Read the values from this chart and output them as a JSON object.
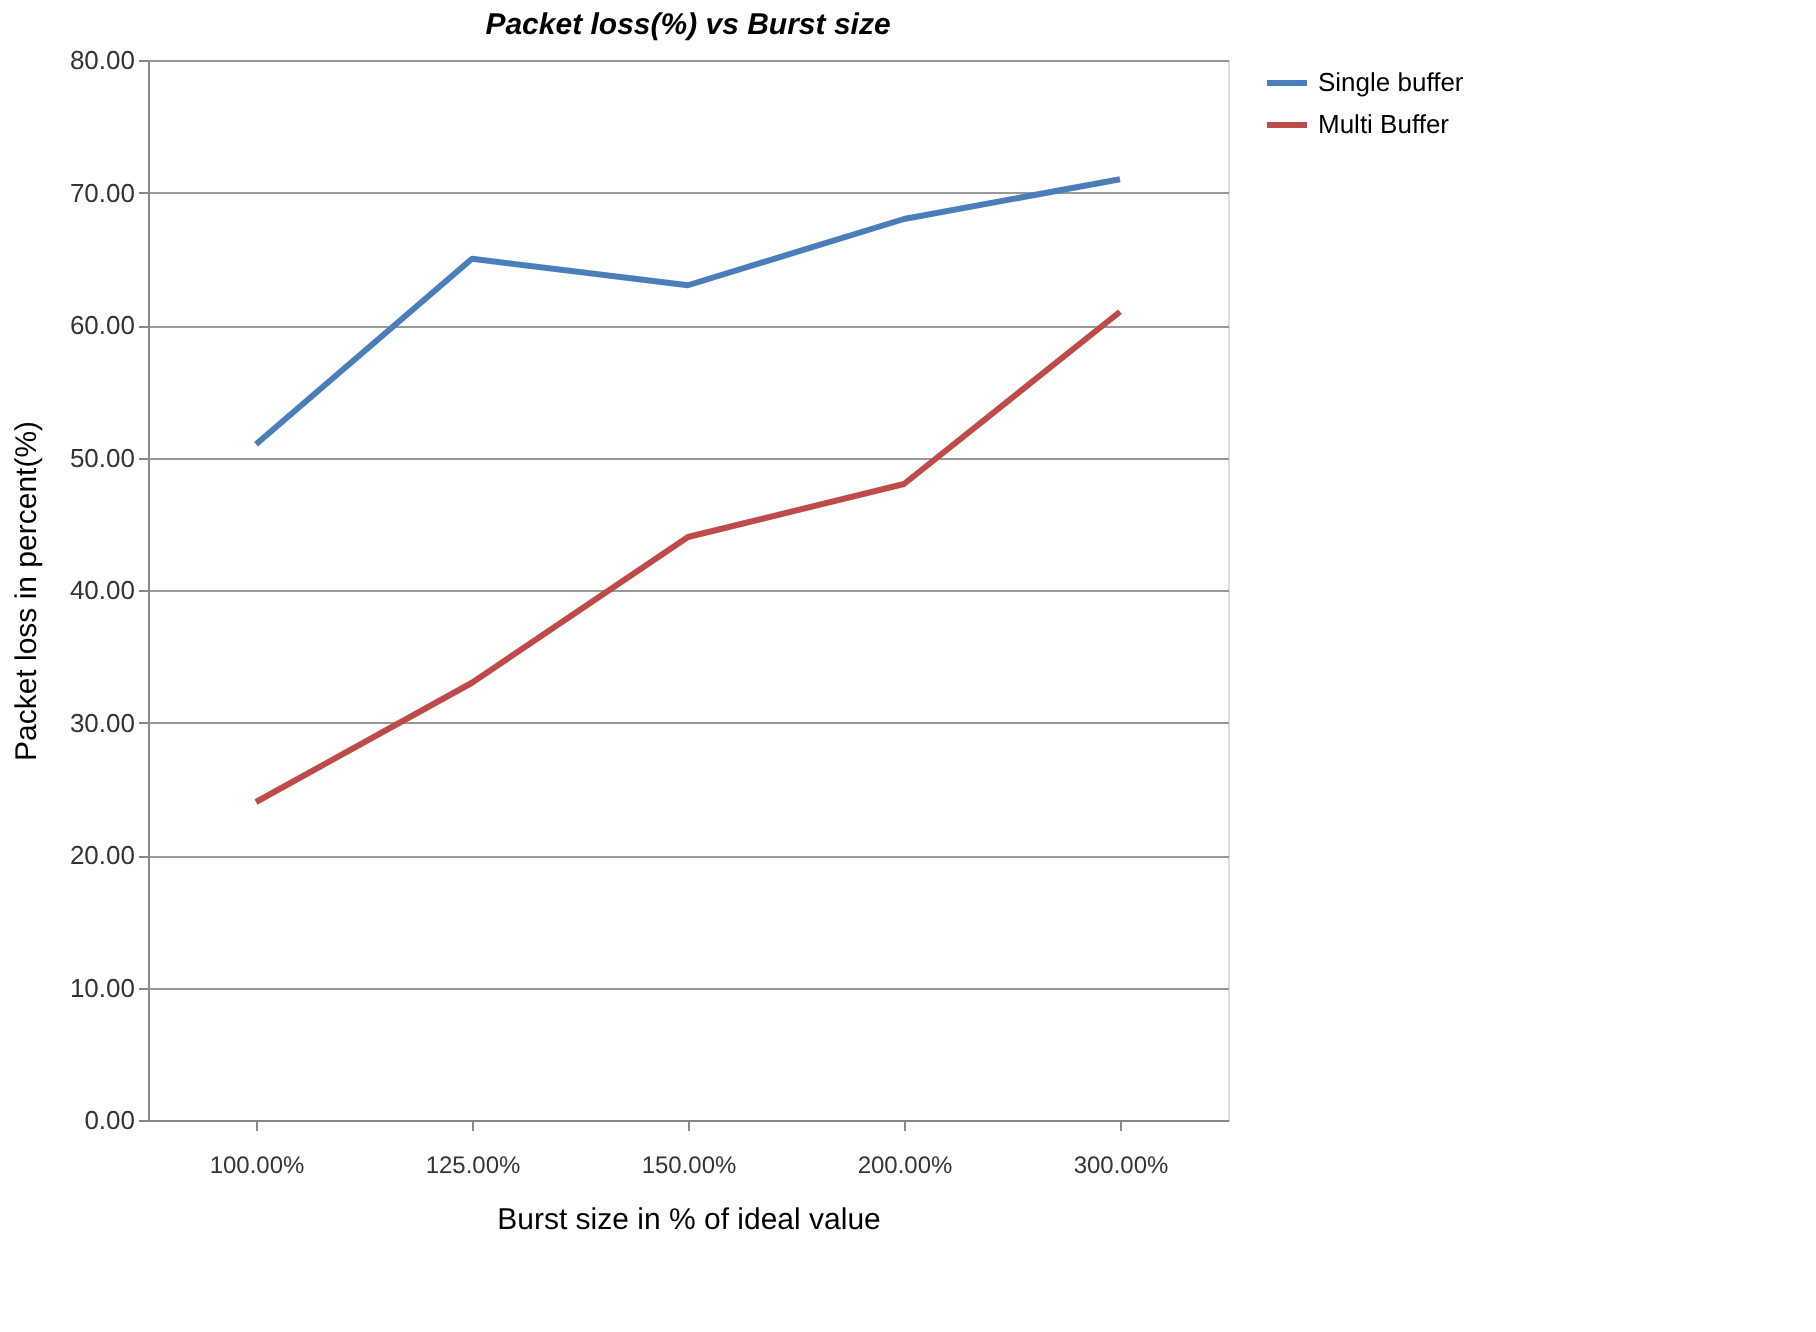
{
  "chart_data": {
    "type": "line",
    "title": "Packet loss(%)  vs Burst size",
    "xlabel": "Burst size in % of ideal value",
    "ylabel": "Packet loss in percent(%)",
    "categories": [
      "100.00%",
      "125.00%",
      "150.00%",
      "200.00%",
      "300.00%"
    ],
    "series": [
      {
        "name": "Single buffer",
        "color": "#4a7ebb",
        "values": [
          51,
          65,
          63,
          68,
          71
        ]
      },
      {
        "name": "Multi Buffer",
        "color": "#be4b48",
        "values": [
          24,
          33,
          44,
          48,
          61
        ]
      }
    ],
    "ylim": [
      0,
      80
    ],
    "yticks": [
      {
        "value": 0,
        "label": "0.00"
      },
      {
        "value": 10,
        "label": "10.00"
      },
      {
        "value": 20,
        "label": "20.00"
      },
      {
        "value": 30,
        "label": "30.00"
      },
      {
        "value": 40,
        "label": "40.00"
      },
      {
        "value": 50,
        "label": "50.00"
      },
      {
        "value": 60,
        "label": "60.00"
      },
      {
        "value": 70,
        "label": "70.00"
      },
      {
        "value": 80,
        "label": "80.00"
      }
    ],
    "grid": "y",
    "legend": "right",
    "marker": "none",
    "line_style": "solid"
  }
}
